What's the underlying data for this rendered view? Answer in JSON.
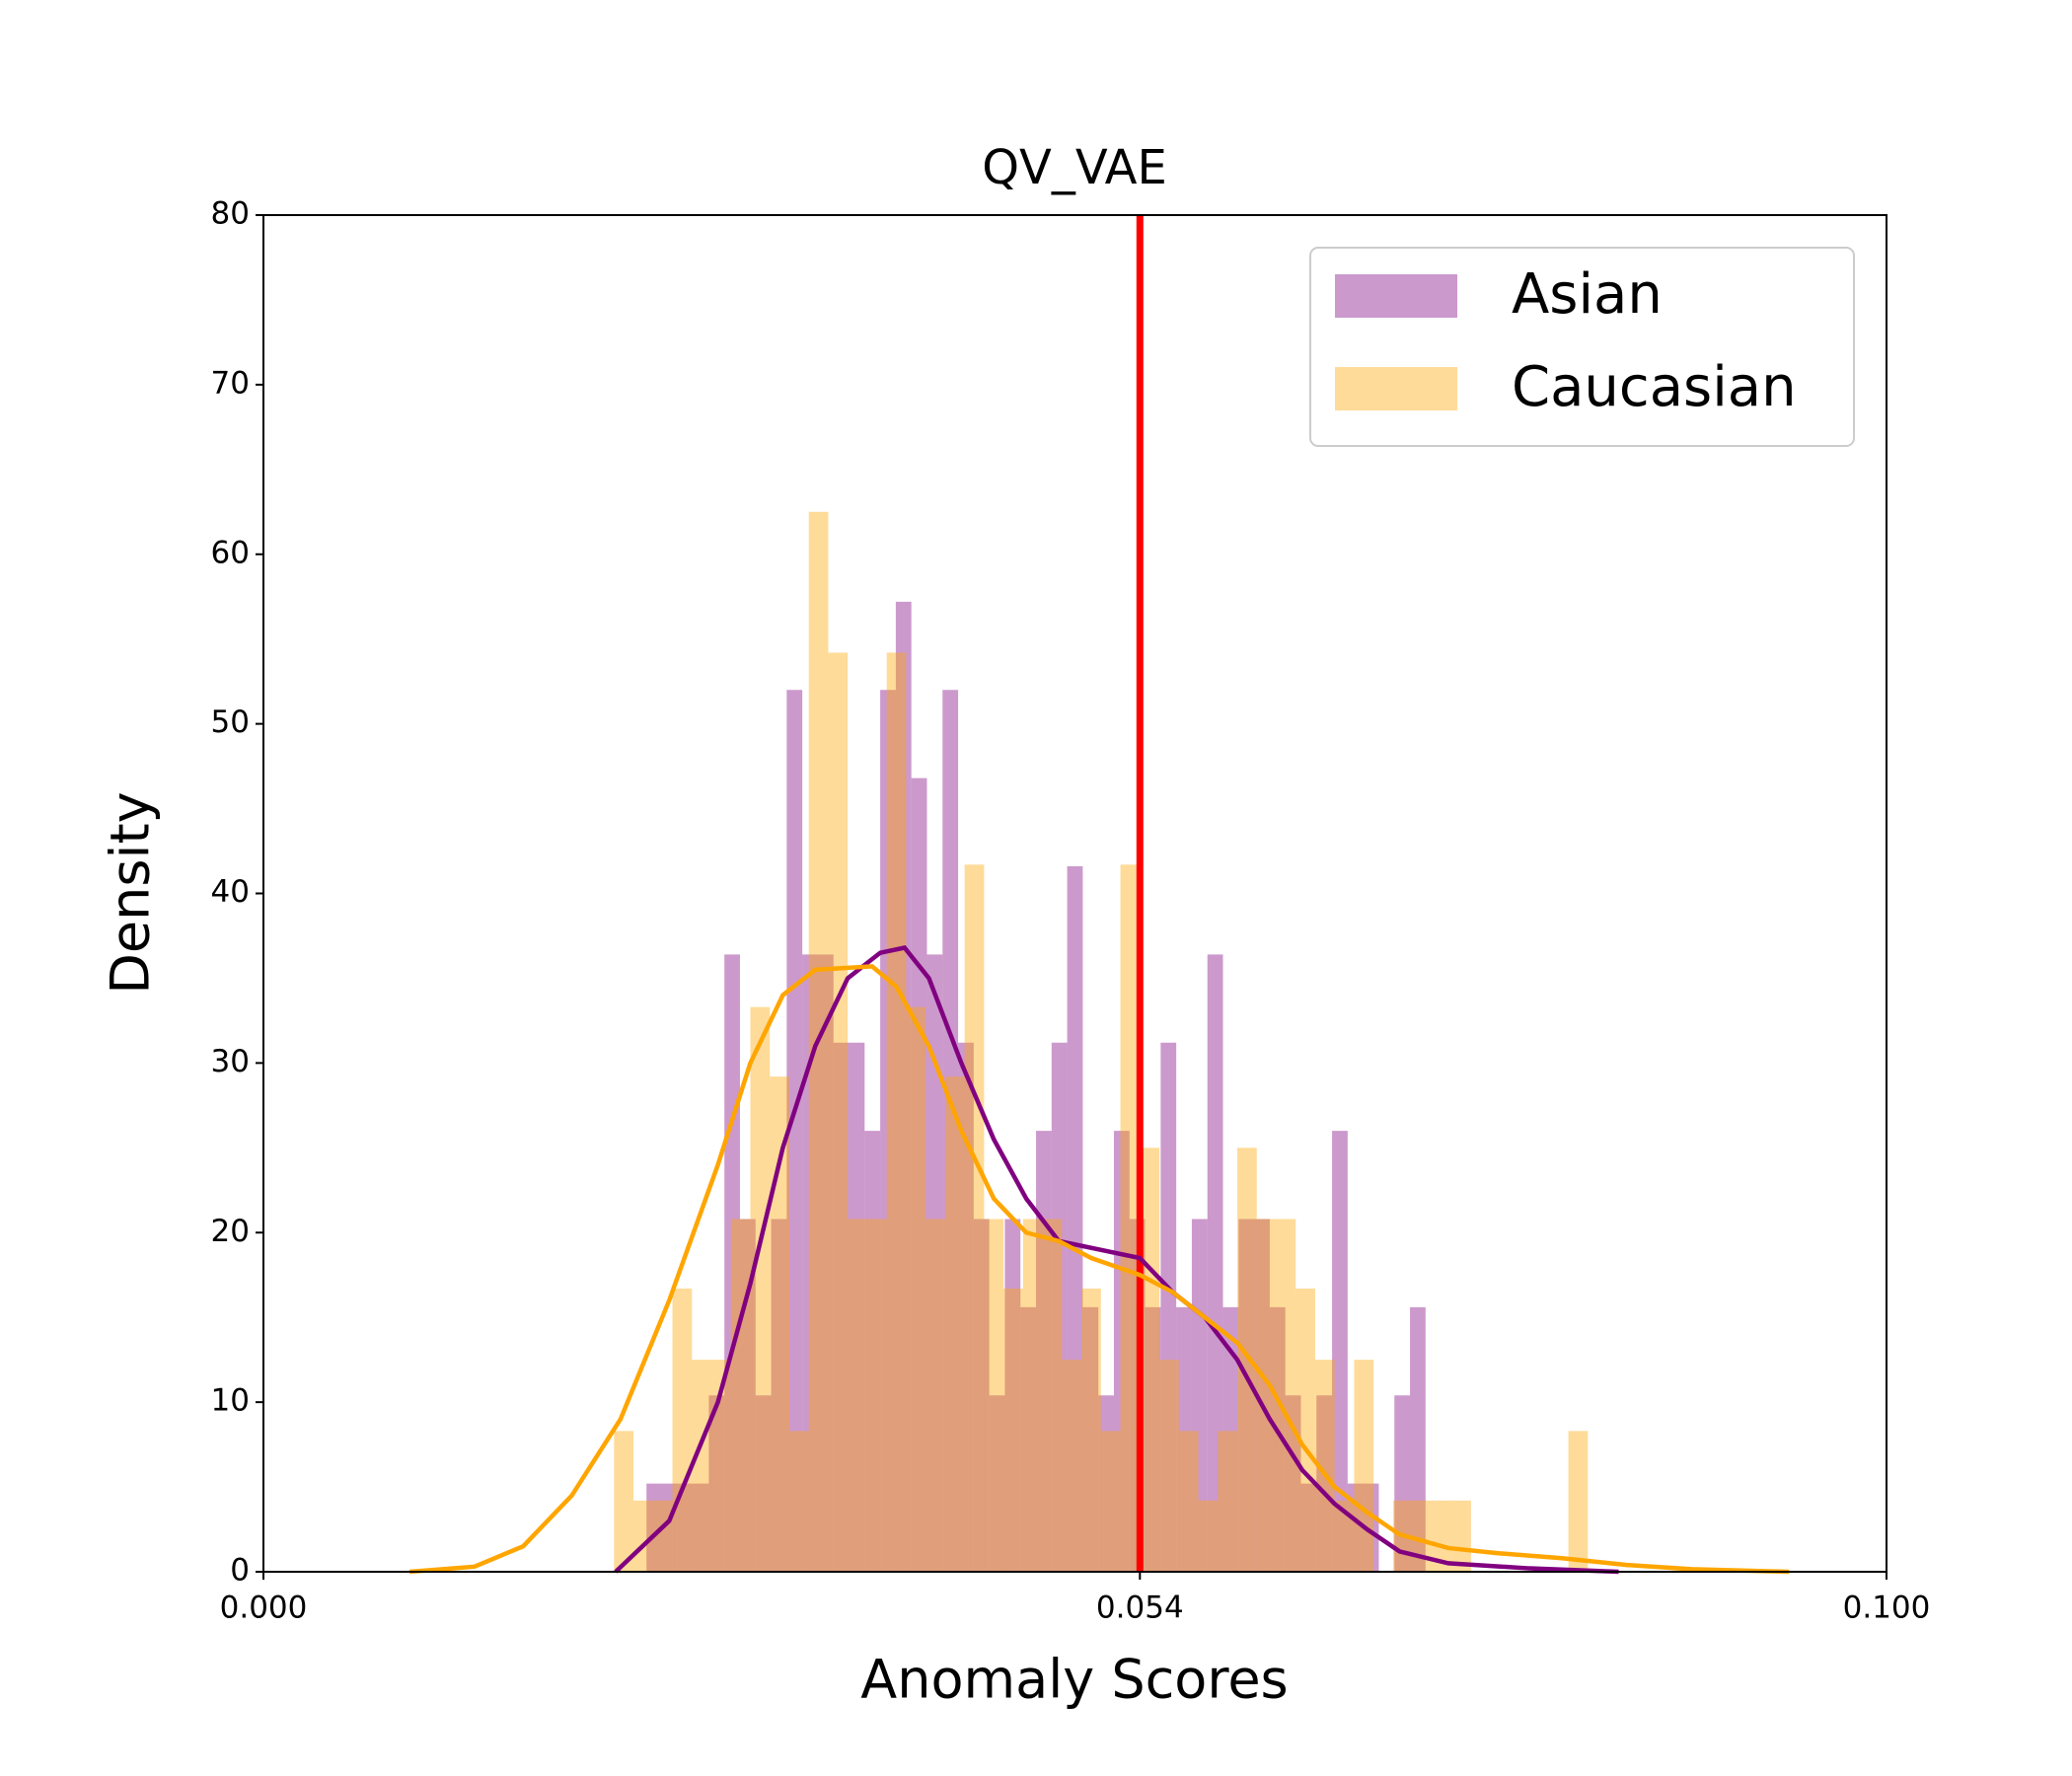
{
  "chart_data": {
    "type": "histogram",
    "title": "QV_VAE",
    "x_label": "Anomaly Scores",
    "y_label": "Density",
    "xlim": [
      0,
      0.1
    ],
    "ylim": [
      0,
      80
    ],
    "xticks": [
      {
        "value": 0,
        "label": "0.000"
      },
      {
        "value": 0.054,
        "label": "0.054"
      },
      {
        "value": 0.1,
        "label": "0.100"
      }
    ],
    "yticks": [
      0,
      10,
      20,
      30,
      40,
      50,
      60,
      70,
      80
    ],
    "legend": "upper right",
    "opacity": 0.4,
    "vline": {
      "x": 0.054,
      "color": "#ff0000"
    },
    "series": [
      {
        "name": "Asian",
        "color": "#800080",
        "bins": [
          0.0236,
          0.02456,
          0.02552,
          0.02648,
          0.02744,
          0.0284,
          0.02936,
          0.03032,
          0.03128,
          0.03224,
          0.0332,
          0.03416,
          0.03512,
          0.03608,
          0.03704,
          0.038,
          0.03896,
          0.03992,
          0.04088,
          0.04184,
          0.0428,
          0.04376,
          0.04472,
          0.04568,
          0.04664,
          0.0476,
          0.04856,
          0.04952,
          0.05048,
          0.05144,
          0.0524,
          0.05336,
          0.05432,
          0.05528,
          0.05624,
          0.0572,
          0.05816,
          0.05912,
          0.06008,
          0.06104,
          0.062,
          0.06296,
          0.06392,
          0.06488,
          0.06584,
          0.0668,
          0.06776,
          0.06872,
          0.06968,
          0.07064,
          0.0716
        ],
        "values": [
          5.2,
          5.2,
          5.2,
          5.2,
          10.4,
          36.4,
          20.8,
          10.4,
          20.8,
          52,
          36.4,
          36.4,
          31.2,
          31.2,
          26,
          52,
          57.2,
          46.8,
          36.4,
          52,
          31.2,
          20.8,
          10.4,
          20.8,
          15.6,
          26,
          31.2,
          41.6,
          15.6,
          10.4,
          26,
          20.8,
          15.6,
          31.2,
          15.6,
          20.8,
          36.4,
          15.6,
          20.8,
          20.8,
          15.6,
          10.4,
          5.2,
          10.4,
          26,
          5.2,
          5.2,
          0,
          10.4,
          15.6
        ],
        "kde": {
          "x": [
            0.0217,
            0.025,
            0.028,
            0.03,
            0.032,
            0.034,
            0.036,
            0.038,
            0.0395,
            0.041,
            0.043,
            0.045,
            0.047,
            0.049,
            0.054,
            0.056,
            0.058,
            0.06,
            0.062,
            0.064,
            0.066,
            0.068,
            0.07,
            0.073,
            0.078,
            0.0835
          ],
          "values": [
            0,
            3,
            10,
            17,
            25,
            31,
            35,
            36.5,
            36.8,
            35,
            30,
            25.5,
            22,
            19.5,
            18.5,
            16.5,
            15,
            12.5,
            9,
            6,
            4,
            2.5,
            1.2,
            0.5,
            0.2,
            0
          ]
        }
      },
      {
        "name": "Caucasian",
        "color": "#ffa500",
        "bins": [
          0.0216,
          0.0228,
          0.024,
          0.0252,
          0.0264,
          0.0276,
          0.0288,
          0.03,
          0.0312,
          0.0324,
          0.0336,
          0.0348,
          0.036,
          0.0372,
          0.0384,
          0.0396,
          0.0408,
          0.042,
          0.0432,
          0.0444,
          0.0456,
          0.0468,
          0.048,
          0.0492,
          0.0504,
          0.0516,
          0.0528,
          0.054,
          0.0552,
          0.0564,
          0.0576,
          0.0588,
          0.06,
          0.0612,
          0.0624,
          0.0636,
          0.0648,
          0.066,
          0.0672,
          0.0684,
          0.0696,
          0.0708,
          0.072,
          0.0732,
          0.0744,
          0.0756,
          0.0768,
          0.078,
          0.0792,
          0.0804,
          0.0816
        ],
        "values": [
          8.3,
          4.2,
          4.2,
          16.7,
          12.5,
          12.5,
          20.8,
          33.3,
          29.2,
          8.3,
          62.5,
          54.2,
          20.8,
          20.8,
          54.2,
          33.3,
          20.8,
          29.2,
          41.7,
          20.8,
          16.7,
          20.8,
          20.8,
          12.5,
          16.7,
          8.3,
          41.7,
          25,
          12.5,
          8.3,
          4.2,
          8.3,
          25,
          20.8,
          20.8,
          16.7,
          12.5,
          4.2,
          12.5,
          0,
          4.2,
          4.2,
          4.2,
          4.2,
          0,
          0,
          0,
          0,
          0,
          8.3
        ],
        "kde": {
          "x": [
            0.009,
            0.013,
            0.016,
            0.019,
            0.022,
            0.025,
            0.028,
            0.03,
            0.032,
            0.034,
            0.0375,
            0.039,
            0.041,
            0.043,
            0.045,
            0.047,
            0.049,
            0.051,
            0.054,
            0.056,
            0.058,
            0.06,
            0.062,
            0.064,
            0.066,
            0.068,
            0.07,
            0.073,
            0.076,
            0.08,
            0.084,
            0.088,
            0.094
          ],
          "values": [
            0,
            0.3,
            1.5,
            4.5,
            9,
            16,
            24,
            30,
            34,
            35.5,
            35.7,
            34.5,
            31,
            26,
            22,
            20,
            19.5,
            18.5,
            17.5,
            16.5,
            15,
            13.5,
            11,
            7.5,
            5,
            3.5,
            2.2,
            1.4,
            1.1,
            0.8,
            0.4,
            0.15,
            0
          ]
        }
      }
    ]
  }
}
